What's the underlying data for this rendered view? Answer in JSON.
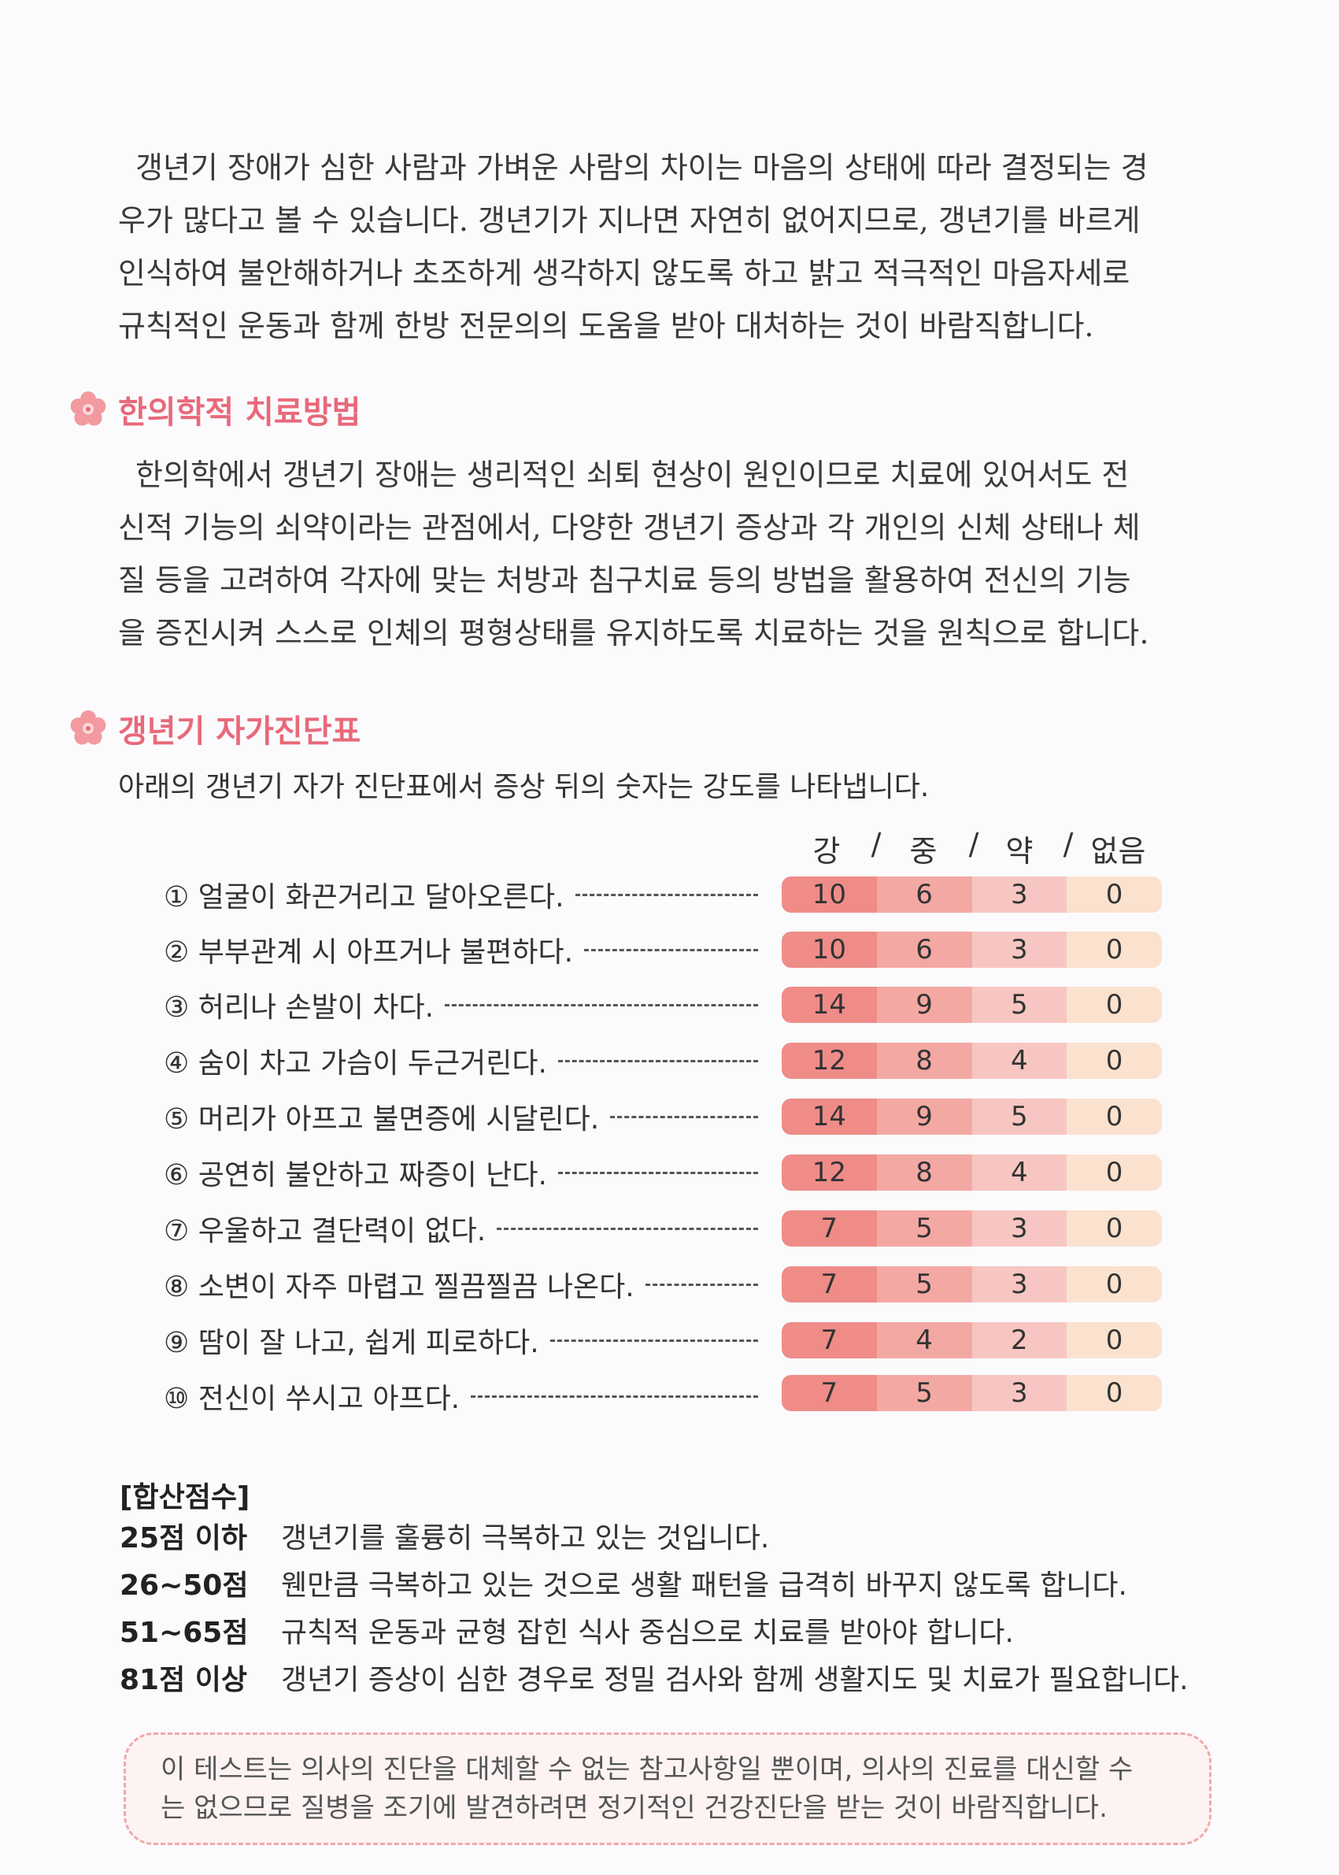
{
  "paragraph1": {
    "lines": [
      "갱년기 장애가 심한 사람과 가벼운 사람의 차이는 마음의 상태에 따라 결정되는 경",
      "우가 많다고 볼 수 있습니다. 갱년기가 지나면 자연히 없어지므로, 갱년기를 바르게",
      "인식하여 불안해하거나 초조하게 생각하지 않도록 하고 밝고 적극적인 마음자세로",
      "규칙적인 운동과 함께 한방 전문의의 도움을 받아 대처하는 것이 바람직합니다."
    ]
  },
  "section1": {
    "icon": "plum-blossom-icon",
    "title": "한의학적 치료방법",
    "lines": [
      "한의학에서 갱년기 장애는 생리적인 쇠퇴 현상이 원인이므로 치료에 있어서도 전",
      "신적 기능의 쇠약이라는 관점에서, 다양한 갱년기 증상과 각 개인의 신체 상태나 체",
      "질 등을 고려하여 각자에 맞는 처방과 침구치료 등의 방법을 활용하여 전신의 기능",
      "을 증진시켜 스스로 인체의 평형상태를 유지하도록 치료하는 것을 원칙으로 합니다."
    ]
  },
  "section2": {
    "icon": "plum-blossom-icon",
    "title": "갱년기 자가진단표",
    "intro": "아래의 갱년기 자가 진단표에서 증상 뒤의 숫자는 강도를 나타냅니다.",
    "columns": [
      "강",
      "/",
      "중",
      "/",
      "약",
      "/",
      "없음"
    ],
    "colors": [
      "#ef8c88",
      "#f4a8a3",
      "#f7c6c2",
      "#fbe2cf"
    ],
    "symptoms": [
      {
        "label": "① 얼굴이 화끈거리고 달아오른다.",
        "scores": [
          "10",
          "6",
          "3",
          "0"
        ]
      },
      {
        "label": "② 부부관계 시 아프거나 불편하다.",
        "scores": [
          "10",
          "6",
          "3",
          "0"
        ]
      },
      {
        "label": "③ 허리나 손발이 차다.",
        "scores": [
          "14",
          "9",
          "5",
          "0"
        ]
      },
      {
        "label": "④ 숨이 차고 가슴이 두근거린다.",
        "scores": [
          "12",
          "8",
          "4",
          "0"
        ]
      },
      {
        "label": "⑤ 머리가 아프고 불면증에 시달린다.",
        "scores": [
          "14",
          "9",
          "5",
          "0"
        ]
      },
      {
        "label": "⑥ 공연히 불안하고 짜증이 난다.",
        "scores": [
          "12",
          "8",
          "4",
          "0"
        ]
      },
      {
        "label": "⑦ 우울하고 결단력이 없다.",
        "scores": [
          "7",
          "5",
          "3",
          "0"
        ]
      },
      {
        "label": "⑧ 소변이 자주 마렵고 찔끔찔끔 나온다.",
        "scores": [
          "7",
          "5",
          "3",
          "0"
        ]
      },
      {
        "label": "⑨ 땀이 잘 나고, 쉽게 피로하다.",
        "scores": [
          "7",
          "4",
          "2",
          "0"
        ]
      },
      {
        "label": "⑩ 전신이 쑤시고 아프다.",
        "scores": [
          "7",
          "5",
          "3",
          "0"
        ]
      }
    ]
  },
  "summary": {
    "title": "[합산점수]",
    "rows": [
      {
        "range": "25점 이하",
        "desc": "갱년기를 훌륭히 극복하고 있는 것입니다."
      },
      {
        "range": "26~50점",
        "desc": "웬만큼 극복하고 있는 것으로 생활 패턴을 급격히 바꾸지 않도록 합니다."
      },
      {
        "range": "51~65점",
        "desc": "규칙적 운동과 균형 잡힌 식사 중심으로 치료를 받아야 합니다."
      },
      {
        "range": "81점 이상",
        "desc": "갱년기 증상이 심한 경우로 정밀 검사와 함께 생활지도 및 치료가 필요합니다."
      }
    ]
  },
  "notice": {
    "lines": [
      "이 테스트는 의사의 진단을 대체할 수 없는 참고사항일 뿐이며, 의사의 진료를 대신할 수",
      "는 없으므로 질병을 조기에 발견하려면 정기적인 건강진단을 받는 것이 바람직합니다."
    ]
  }
}
